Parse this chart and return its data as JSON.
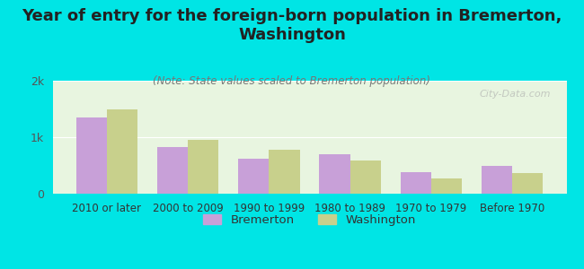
{
  "categories": [
    "2010 or later",
    "2000 to 2009",
    "1990 to 1999",
    "1980 to 1989",
    "1970 to 1979",
    "Before 1970"
  ],
  "bremerton": [
    1350,
    830,
    620,
    700,
    380,
    500
  ],
  "washington": [
    1500,
    950,
    780,
    580,
    270,
    370
  ],
  "bremerton_color": "#c8a0d8",
  "washington_color": "#c8d08c",
  "title": "Year of entry for the foreign-born population in Bremerton,\nWashington",
  "subtitle": "(Note: State values scaled to Bremerton population)",
  "legend_bremerton": "Bremerton",
  "legend_washington": "Washington",
  "background_outer": "#00e5e5",
  "background_inner": "#e8f5e0",
  "ylim": [
    0,
    2000
  ],
  "yticks": [
    0,
    1000,
    2000
  ],
  "ytick_labels": [
    "0",
    "1k",
    "2k"
  ],
  "bar_width": 0.38,
  "title_fontsize": 13,
  "subtitle_fontsize": 8.5,
  "watermark": "City-Data.com"
}
